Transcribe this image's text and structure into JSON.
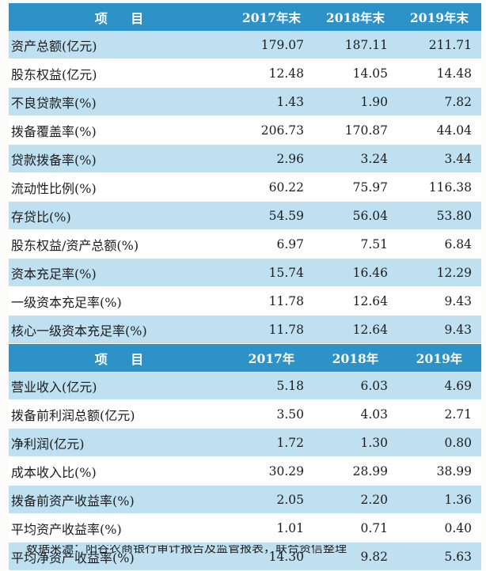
{
  "table1": {
    "header": [
      "项 目",
      "2017年末",
      "2018年末",
      "2019年末"
    ],
    "rows": [
      [
        "资产总额(亿元)",
        "179.07",
        "187.11",
        "211.71"
      ],
      [
        "股东权益(亿元)",
        "12.48",
        "14.05",
        "14.48"
      ],
      [
        "不良贷款率(%)",
        "1.43",
        "1.90",
        "7.82"
      ],
      [
        "拨备覆盖率(%)",
        "206.73",
        "170.87",
        "44.04"
      ],
      [
        "贷款拨备率(%)",
        "2.96",
        "3.24",
        "3.44"
      ],
      [
        "流动性比例(%)",
        "60.22",
        "75.97",
        "116.38"
      ],
      [
        "存贷比(%)",
        "54.59",
        "56.04",
        "53.80"
      ],
      [
        "股东权益/资产总额(%)",
        "6.97",
        "7.51",
        "6.84"
      ],
      [
        "资本充足率(%)",
        "15.74",
        "16.46",
        "12.29"
      ],
      [
        "一级资本充足率(%)",
        "11.78",
        "12.64",
        "9.43"
      ],
      [
        "核心一级资本充足率(%)",
        "11.78",
        "12.64",
        "9.43"
      ]
    ]
  },
  "table2": {
    "header": [
      "项 目",
      "2017年",
      "2018年",
      "2019年"
    ],
    "rows": [
      [
        "营业收入(亿元)",
        "5.18",
        "6.03",
        "4.69"
      ],
      [
        "拨备前利润总额(亿元)",
        "3.50",
        "4.03",
        "2.71"
      ],
      [
        "净利润(亿元)",
        "1.72",
        "1.30",
        "0.80"
      ],
      [
        "成本收入比(%)",
        "30.29",
        "28.99",
        "38.99"
      ],
      [
        "拨备前资产收益率(%)",
        "2.05",
        "2.20",
        "1.36"
      ],
      [
        "平均资产收益率(%)",
        "1.01",
        "0.71",
        "0.40"
      ],
      [
        "平均净资产收益率(%)",
        "14.30",
        "9.82",
        "5.63"
      ]
    ]
  },
  "footnote": "数据来源：阳谷农商银行审计报告及监管报表，联合资信整理",
  "colors": {
    "header": "#2c92c8",
    "stripe": "#bfe0f1",
    "plain": "#ffffff"
  }
}
